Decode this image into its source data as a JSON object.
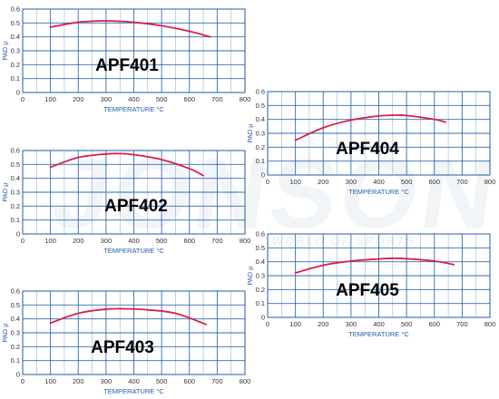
{
  "watermark": {
    "text": "JONSON",
    "subtext": "WORLD OF SPORTS"
  },
  "style": {
    "grid_color": "#1f5ca8",
    "line_color": "#d6224c",
    "axis_text_color": "#333333"
  },
  "chart_data": [
    {
      "type": "line",
      "title": "APF401",
      "xlabel": "TEMPERATURE °C",
      "ylabel": "PAD μ",
      "xlim": [
        0,
        800
      ],
      "ylim": [
        0,
        0.6
      ],
      "x_ticks": [
        "0",
        "100",
        "200",
        "300",
        "400",
        "500",
        "600",
        "700",
        "800"
      ],
      "y_ticks": [
        "0",
        "0.1",
        "0.2",
        "0.3",
        "0.4",
        "0.5",
        "0.6"
      ],
      "series": [
        {
          "x": [
            100,
            200,
            300,
            400,
            500,
            600,
            675
          ],
          "y": [
            0.47,
            0.505,
            0.515,
            0.505,
            0.48,
            0.44,
            0.4
          ]
        }
      ]
    },
    {
      "type": "line",
      "title": "APF402",
      "xlabel": "TEMPERATURE °C",
      "ylabel": "PAD μ",
      "xlim": [
        0,
        800
      ],
      "ylim": [
        0,
        0.6
      ],
      "x_ticks": [
        "0",
        "100",
        "200",
        "300",
        "400",
        "500",
        "600",
        "700",
        "800"
      ],
      "y_ticks": [
        "0",
        "0.1",
        "0.2",
        "0.3",
        "0.4",
        "0.5",
        "0.6"
      ],
      "series": [
        {
          "x": [
            100,
            200,
            300,
            350,
            400,
            500,
            600,
            650
          ],
          "y": [
            0.48,
            0.55,
            0.575,
            0.578,
            0.57,
            0.535,
            0.47,
            0.42
          ]
        }
      ]
    },
    {
      "type": "line",
      "title": "APF403",
      "xlabel": "TEMPERATURE °C",
      "ylabel": "PAD μ",
      "xlim": [
        0,
        800
      ],
      "ylim": [
        0,
        0.6
      ],
      "x_ticks": [
        "0",
        "100",
        "200",
        "300",
        "400",
        "500",
        "600",
        "700",
        "800"
      ],
      "y_ticks": [
        "0",
        "0.1",
        "0.2",
        "0.3",
        "0.4",
        "0.5",
        "0.6"
      ],
      "series": [
        {
          "x": [
            100,
            200,
            300,
            380,
            450,
            550,
            660
          ],
          "y": [
            0.37,
            0.44,
            0.47,
            0.472,
            0.465,
            0.44,
            0.36
          ]
        }
      ]
    },
    {
      "type": "line",
      "title": "APF404",
      "xlabel": "TEMPERATURE °C",
      "ylabel": "PAD μ",
      "xlim": [
        0,
        800
      ],
      "ylim": [
        0,
        0.6
      ],
      "x_ticks": [
        "0",
        "100",
        "200",
        "300",
        "400",
        "500",
        "600",
        "700",
        "800"
      ],
      "y_ticks": [
        "0",
        "0.1",
        "0.2",
        "0.3",
        "0.4",
        "0.5",
        "0.6"
      ],
      "series": [
        {
          "x": [
            100,
            200,
            300,
            400,
            450,
            500,
            600,
            640
          ],
          "y": [
            0.25,
            0.34,
            0.395,
            0.425,
            0.43,
            0.428,
            0.4,
            0.38
          ]
        }
      ]
    },
    {
      "type": "line",
      "title": "APF405",
      "xlabel": "TEMPERATURE °C",
      "ylabel": "PAD μ",
      "xlim": [
        0,
        800
      ],
      "ylim": [
        0,
        0.6
      ],
      "x_ticks": [
        "0",
        "100",
        "200",
        "300",
        "400",
        "500",
        "600",
        "700",
        "800"
      ],
      "y_ticks": [
        "0",
        "0.1",
        "0.2",
        "0.3",
        "0.4",
        "0.5",
        "0.6"
      ],
      "series": [
        {
          "x": [
            100,
            200,
            300,
            400,
            450,
            500,
            600,
            670
          ],
          "y": [
            0.32,
            0.375,
            0.405,
            0.42,
            0.425,
            0.422,
            0.405,
            0.38
          ]
        }
      ]
    }
  ]
}
